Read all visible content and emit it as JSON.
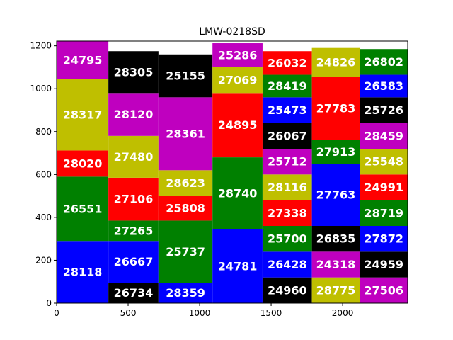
{
  "chart_data": {
    "type": "treemap",
    "title": "LMW-0218SD",
    "xlabel": "",
    "ylabel": "",
    "xlim": [
      0,
      2455
    ],
    "ylim": [
      0,
      1222
    ],
    "xticks": [
      0,
      500,
      1000,
      1500,
      2000
    ],
    "yticks": [
      0,
      200,
      400,
      600,
      800,
      1000,
      1200
    ],
    "grid": false,
    "palette": {
      "blue": "#0000ff",
      "green": "#008000",
      "red": "#ff0000",
      "yellow": "#bfbf00",
      "magenta": "#bf00bf",
      "black": "#000000"
    },
    "cells": [
      {
        "label": "28118",
        "color": "blue",
        "x0": 0,
        "x1": 362,
        "y0": 0,
        "y1": 290
      },
      {
        "label": "26551",
        "color": "green",
        "x0": 0,
        "x1": 362,
        "y0": 290,
        "y1": 590
      },
      {
        "label": "28020",
        "color": "red",
        "x0": 0,
        "x1": 362,
        "y0": 590,
        "y1": 712
      },
      {
        "label": "28317",
        "color": "yellow",
        "x0": 0,
        "x1": 362,
        "y0": 712,
        "y1": 1045
      },
      {
        "label": "24795",
        "color": "magenta",
        "x0": 0,
        "x1": 362,
        "y0": 1045,
        "y1": 1222
      },
      {
        "label": "26734",
        "color": "black",
        "x0": 362,
        "x1": 712,
        "y0": 0,
        "y1": 95
      },
      {
        "label": "26667",
        "color": "blue",
        "x0": 362,
        "x1": 712,
        "y0": 95,
        "y1": 290
      },
      {
        "label": "27265",
        "color": "green",
        "x0": 362,
        "x1": 712,
        "y0": 290,
        "y1": 385
      },
      {
        "label": "27106",
        "color": "red",
        "x0": 362,
        "x1": 712,
        "y0": 385,
        "y1": 585
      },
      {
        "label": "27480",
        "color": "yellow",
        "x0": 362,
        "x1": 712,
        "y0": 585,
        "y1": 780
      },
      {
        "label": "28120",
        "color": "magenta",
        "x0": 362,
        "x1": 712,
        "y0": 780,
        "y1": 980
      },
      {
        "label": "28305",
        "color": "black",
        "x0": 362,
        "x1": 712,
        "y0": 980,
        "y1": 1175
      },
      {
        "label": "28359",
        "color": "blue",
        "x0": 712,
        "x1": 1090,
        "y0": 0,
        "y1": 95
      },
      {
        "label": "25737",
        "color": "green",
        "x0": 712,
        "x1": 1090,
        "y0": 95,
        "y1": 385
      },
      {
        "label": "25808",
        "color": "red",
        "x0": 712,
        "x1": 1090,
        "y0": 385,
        "y1": 500
      },
      {
        "label": "28623",
        "color": "yellow",
        "x0": 712,
        "x1": 1090,
        "y0": 500,
        "y1": 620
      },
      {
        "label": "28361",
        "color": "magenta",
        "x0": 712,
        "x1": 1090,
        "y0": 620,
        "y1": 960
      },
      {
        "label": "25155",
        "color": "black",
        "x0": 712,
        "x1": 1090,
        "y0": 960,
        "y1": 1160
      },
      {
        "label": "24781",
        "color": "blue",
        "x0": 1090,
        "x1": 1440,
        "y0": 0,
        "y1": 345
      },
      {
        "label": "28740",
        "color": "green",
        "x0": 1090,
        "x1": 1440,
        "y0": 345,
        "y1": 680
      },
      {
        "label": "24895",
        "color": "red",
        "x0": 1090,
        "x1": 1440,
        "y0": 680,
        "y1": 980
      },
      {
        "label": "27069",
        "color": "yellow",
        "x0": 1090,
        "x1": 1440,
        "y0": 980,
        "y1": 1100
      },
      {
        "label": "25286",
        "color": "magenta",
        "x0": 1090,
        "x1": 1440,
        "y0": 1100,
        "y1": 1212
      },
      {
        "label": "24960",
        "color": "black",
        "x0": 1440,
        "x1": 1785,
        "y0": 0,
        "y1": 120
      },
      {
        "label": "26428",
        "color": "blue",
        "x0": 1440,
        "x1": 1785,
        "y0": 120,
        "y1": 240
      },
      {
        "label": "25700",
        "color": "green",
        "x0": 1440,
        "x1": 1785,
        "y0": 240,
        "y1": 360
      },
      {
        "label": "27338",
        "color": "red",
        "x0": 1440,
        "x1": 1785,
        "y0": 360,
        "y1": 480
      },
      {
        "label": "28116",
        "color": "yellow",
        "x0": 1440,
        "x1": 1785,
        "y0": 480,
        "y1": 600
      },
      {
        "label": "25712",
        "color": "magenta",
        "x0": 1440,
        "x1": 1785,
        "y0": 600,
        "y1": 720
      },
      {
        "label": "26067",
        "color": "black",
        "x0": 1440,
        "x1": 1785,
        "y0": 720,
        "y1": 840
      },
      {
        "label": "25473",
        "color": "blue",
        "x0": 1440,
        "x1": 1785,
        "y0": 840,
        "y1": 960
      },
      {
        "label": "28419",
        "color": "green",
        "x0": 1440,
        "x1": 1785,
        "y0": 960,
        "y1": 1065
      },
      {
        "label": "26032",
        "color": "red",
        "x0": 1440,
        "x1": 1785,
        "y0": 1065,
        "y1": 1175
      },
      {
        "label": "28775",
        "color": "yellow",
        "x0": 1785,
        "x1": 2120,
        "y0": 0,
        "y1": 120
      },
      {
        "label": "24318",
        "color": "magenta",
        "x0": 1785,
        "x1": 2120,
        "y0": 120,
        "y1": 240
      },
      {
        "label": "26835",
        "color": "black",
        "x0": 1785,
        "x1": 2120,
        "y0": 240,
        "y1": 360
      },
      {
        "label": "27763",
        "color": "blue",
        "x0": 1785,
        "x1": 2120,
        "y0": 360,
        "y1": 650
      },
      {
        "label": "27913",
        "color": "green",
        "x0": 1785,
        "x1": 2120,
        "y0": 650,
        "y1": 760
      },
      {
        "label": "27783",
        "color": "red",
        "x0": 1785,
        "x1": 2120,
        "y0": 760,
        "y1": 1055
      },
      {
        "label": "24826",
        "color": "yellow",
        "x0": 1785,
        "x1": 2120,
        "y0": 1055,
        "y1": 1190
      },
      {
        "label": "27506",
        "color": "magenta",
        "x0": 2120,
        "x1": 2455,
        "y0": 0,
        "y1": 120
      },
      {
        "label": "24959",
        "color": "black",
        "x0": 2120,
        "x1": 2455,
        "y0": 120,
        "y1": 240
      },
      {
        "label": "27872",
        "color": "blue",
        "x0": 2120,
        "x1": 2455,
        "y0": 240,
        "y1": 360
      },
      {
        "label": "28719",
        "color": "green",
        "x0": 2120,
        "x1": 2455,
        "y0": 360,
        "y1": 480
      },
      {
        "label": "24991",
        "color": "red",
        "x0": 2120,
        "x1": 2455,
        "y0": 480,
        "y1": 600
      },
      {
        "label": "25548",
        "color": "yellow",
        "x0": 2120,
        "x1": 2455,
        "y0": 600,
        "y1": 720
      },
      {
        "label": "28459",
        "color": "magenta",
        "x0": 2120,
        "x1": 2455,
        "y0": 720,
        "y1": 840
      },
      {
        "label": "25726",
        "color": "black",
        "x0": 2120,
        "x1": 2455,
        "y0": 840,
        "y1": 960
      },
      {
        "label": "26583",
        "color": "blue",
        "x0": 2120,
        "x1": 2455,
        "y0": 960,
        "y1": 1065
      },
      {
        "label": "26802",
        "color": "green",
        "x0": 2120,
        "x1": 2455,
        "y0": 1065,
        "y1": 1185
      }
    ]
  }
}
